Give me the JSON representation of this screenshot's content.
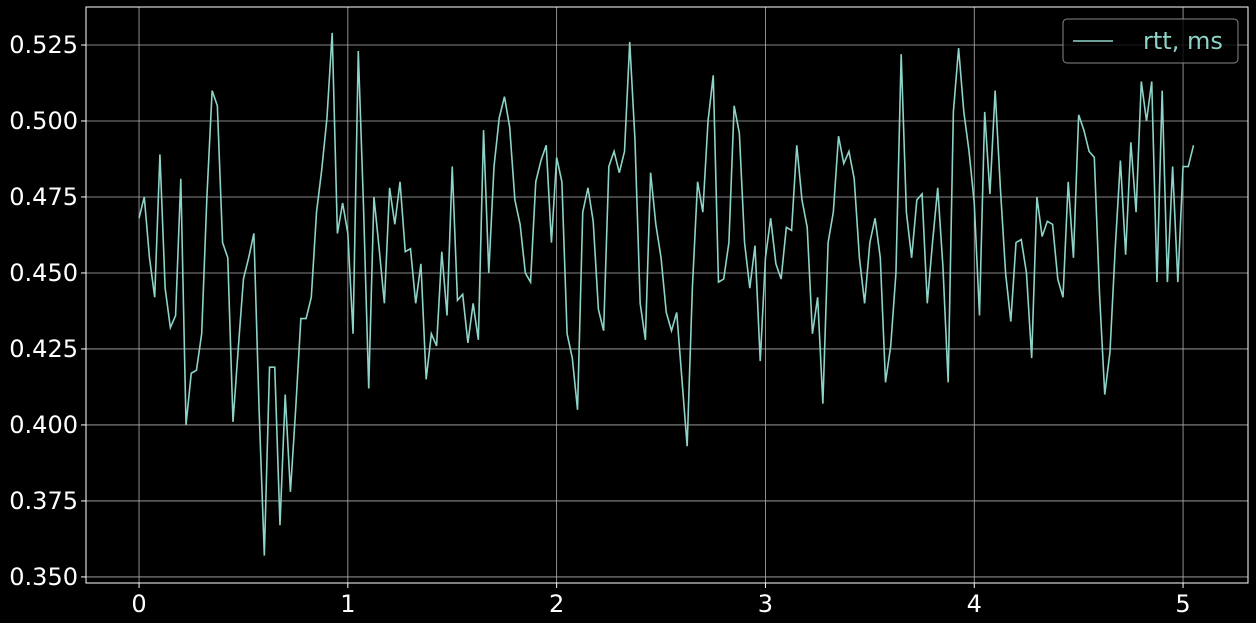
{
  "chart_data": {
    "type": "line",
    "x": [
      0,
      0.025,
      0.05,
      0.075,
      0.1,
      0.125,
      0.15,
      0.175,
      0.2,
      0.225,
      0.25,
      0.275,
      0.3,
      0.325,
      0.35,
      0.375,
      0.4,
      0.425,
      0.45,
      0.475,
      0.5,
      0.525,
      0.55,
      0.575,
      0.6,
      0.625,
      0.65,
      0.675,
      0.7,
      0.725,
      0.75,
      0.775,
      0.8,
      0.825,
      0.85,
      0.875,
      0.9,
      0.925,
      0.95,
      0.975,
      1,
      1.025,
      1.05,
      1.075,
      1.1,
      1.125,
      1.15,
      1.175,
      1.2,
      1.225,
      1.25,
      1.275,
      1.3,
      1.325,
      1.35,
      1.375,
      1.4,
      1.425,
      1.45,
      1.475,
      1.5,
      1.525,
      1.55,
      1.575,
      1.6,
      1.625,
      1.65,
      1.675,
      1.7,
      1.725,
      1.75,
      1.775,
      1.8,
      1.825,
      1.85,
      1.875,
      1.9,
      1.925,
      1.95,
      1.975,
      2,
      2.025,
      2.05,
      2.075,
      2.1,
      2.125,
      2.15,
      2.175,
      2.2,
      2.225,
      2.25,
      2.275,
      2.3,
      2.325,
      2.35,
      2.375,
      2.4,
      2.425,
      2.45,
      2.475,
      2.5,
      2.525,
      2.55,
      2.575,
      2.6,
      2.625,
      2.65,
      2.675,
      2.7,
      2.725,
      2.75,
      2.775,
      2.8,
      2.825,
      2.85,
      2.875,
      2.9,
      2.925,
      2.95,
      2.975,
      3,
      3.025,
      3.05,
      3.075,
      3.1,
      3.125,
      3.15,
      3.175,
      3.2,
      3.225,
      3.25,
      3.275,
      3.3,
      3.325,
      3.35,
      3.375,
      3.4,
      3.425,
      3.45,
      3.475,
      3.5,
      3.525,
      3.55,
      3.575,
      3.6,
      3.625,
      3.65,
      3.675,
      3.7,
      3.725,
      3.75,
      3.775,
      3.8,
      3.825,
      3.85,
      3.875,
      3.9,
      3.925,
      3.95,
      3.975,
      4,
      4.025,
      4.05,
      4.075,
      4.1,
      4.125,
      4.15,
      4.175,
      4.2,
      4.225,
      4.25,
      4.275,
      4.3,
      4.325,
      4.35,
      4.375,
      4.4,
      4.425,
      4.45,
      4.475,
      4.5,
      4.525,
      4.55,
      4.575,
      4.6,
      4.625,
      4.65,
      4.675,
      4.7,
      4.725,
      4.75,
      4.775,
      4.8,
      4.825,
      4.85,
      4.875,
      4.9,
      4.925,
      4.95,
      4.975,
      5,
      5.025,
      5.05
    ],
    "series": [
      {
        "name": "rtt, ms",
        "color": "#8dd3c7",
        "values": [
          0.468,
          0.475,
          0.455,
          0.442,
          0.489,
          0.445,
          0.432,
          0.436,
          0.481,
          0.4,
          0.417,
          0.418,
          0.43,
          0.475,
          0.51,
          0.505,
          0.46,
          0.455,
          0.401,
          0.425,
          0.448,
          0.455,
          0.463,
          0.405,
          0.357,
          0.419,
          0.419,
          0.367,
          0.41,
          0.378,
          0.405,
          0.435,
          0.435,
          0.442,
          0.47,
          0.484,
          0.501,
          0.529,
          0.463,
          0.473,
          0.463,
          0.43,
          0.523,
          0.472,
          0.412,
          0.475,
          0.458,
          0.44,
          0.478,
          0.466,
          0.48,
          0.457,
          0.458,
          0.44,
          0.453,
          0.415,
          0.43,
          0.426,
          0.457,
          0.436,
          0.485,
          0.441,
          0.443,
          0.427,
          0.44,
          0.428,
          0.497,
          0.45,
          0.485,
          0.501,
          0.508,
          0.498,
          0.474,
          0.466,
          0.45,
          0.447,
          0.48,
          0.487,
          0.492,
          0.46,
          0.488,
          0.48,
          0.43,
          0.422,
          0.405,
          0.47,
          0.478,
          0.467,
          0.438,
          0.431,
          0.485,
          0.49,
          0.483,
          0.49,
          0.526,
          0.494,
          0.44,
          0.428,
          0.483,
          0.466,
          0.455,
          0.437,
          0.431,
          0.437,
          0.415,
          0.393,
          0.445,
          0.48,
          0.47,
          0.5,
          0.515,
          0.447,
          0.448,
          0.46,
          0.505,
          0.496,
          0.46,
          0.445,
          0.459,
          0.421,
          0.455,
          0.468,
          0.453,
          0.448,
          0.465,
          0.464,
          0.492,
          0.474,
          0.465,
          0.43,
          0.442,
          0.407,
          0.46,
          0.47,
          0.495,
          0.486,
          0.49,
          0.481,
          0.455,
          0.44,
          0.46,
          0.468,
          0.455,
          0.414,
          0.426,
          0.45,
          0.522,
          0.47,
          0.455,
          0.474,
          0.476,
          0.44,
          0.46,
          0.478,
          0.452,
          0.414,
          0.503,
          0.524,
          0.503,
          0.49,
          0.473,
          0.436,
          0.503,
          0.476,
          0.51,
          0.478,
          0.45,
          0.434,
          0.46,
          0.461,
          0.45,
          0.422,
          0.475,
          0.462,
          0.467,
          0.466,
          0.448,
          0.442,
          0.48,
          0.455,
          0.502,
          0.497,
          0.49,
          0.488,
          0.443,
          0.41,
          0.424,
          0.458,
          0.487,
          0.456,
          0.493,
          0.47,
          0.513,
          0.5,
          0.513,
          0.447,
          0.51,
          0.447,
          0.485,
          0.447,
          0.485,
          0.485,
          0.492
        ]
      }
    ],
    "xlim": [
      -0.254,
      5.311
    ],
    "ylim": [
      0.348,
      0.5375
    ],
    "xticks": [
      0,
      1,
      2,
      3,
      4,
      5
    ],
    "yticks": [
      {
        "value": 0.35,
        "label": "0.350"
      },
      0.375,
      {
        "value": 0.4,
        "label": "0.400"
      },
      0.425,
      {
        "value": 0.45,
        "label": "0.450"
      },
      0.475,
      {
        "value": 0.5,
        "label": "0.500"
      },
      0.525
    ],
    "grid": true,
    "legend": "upper right"
  }
}
